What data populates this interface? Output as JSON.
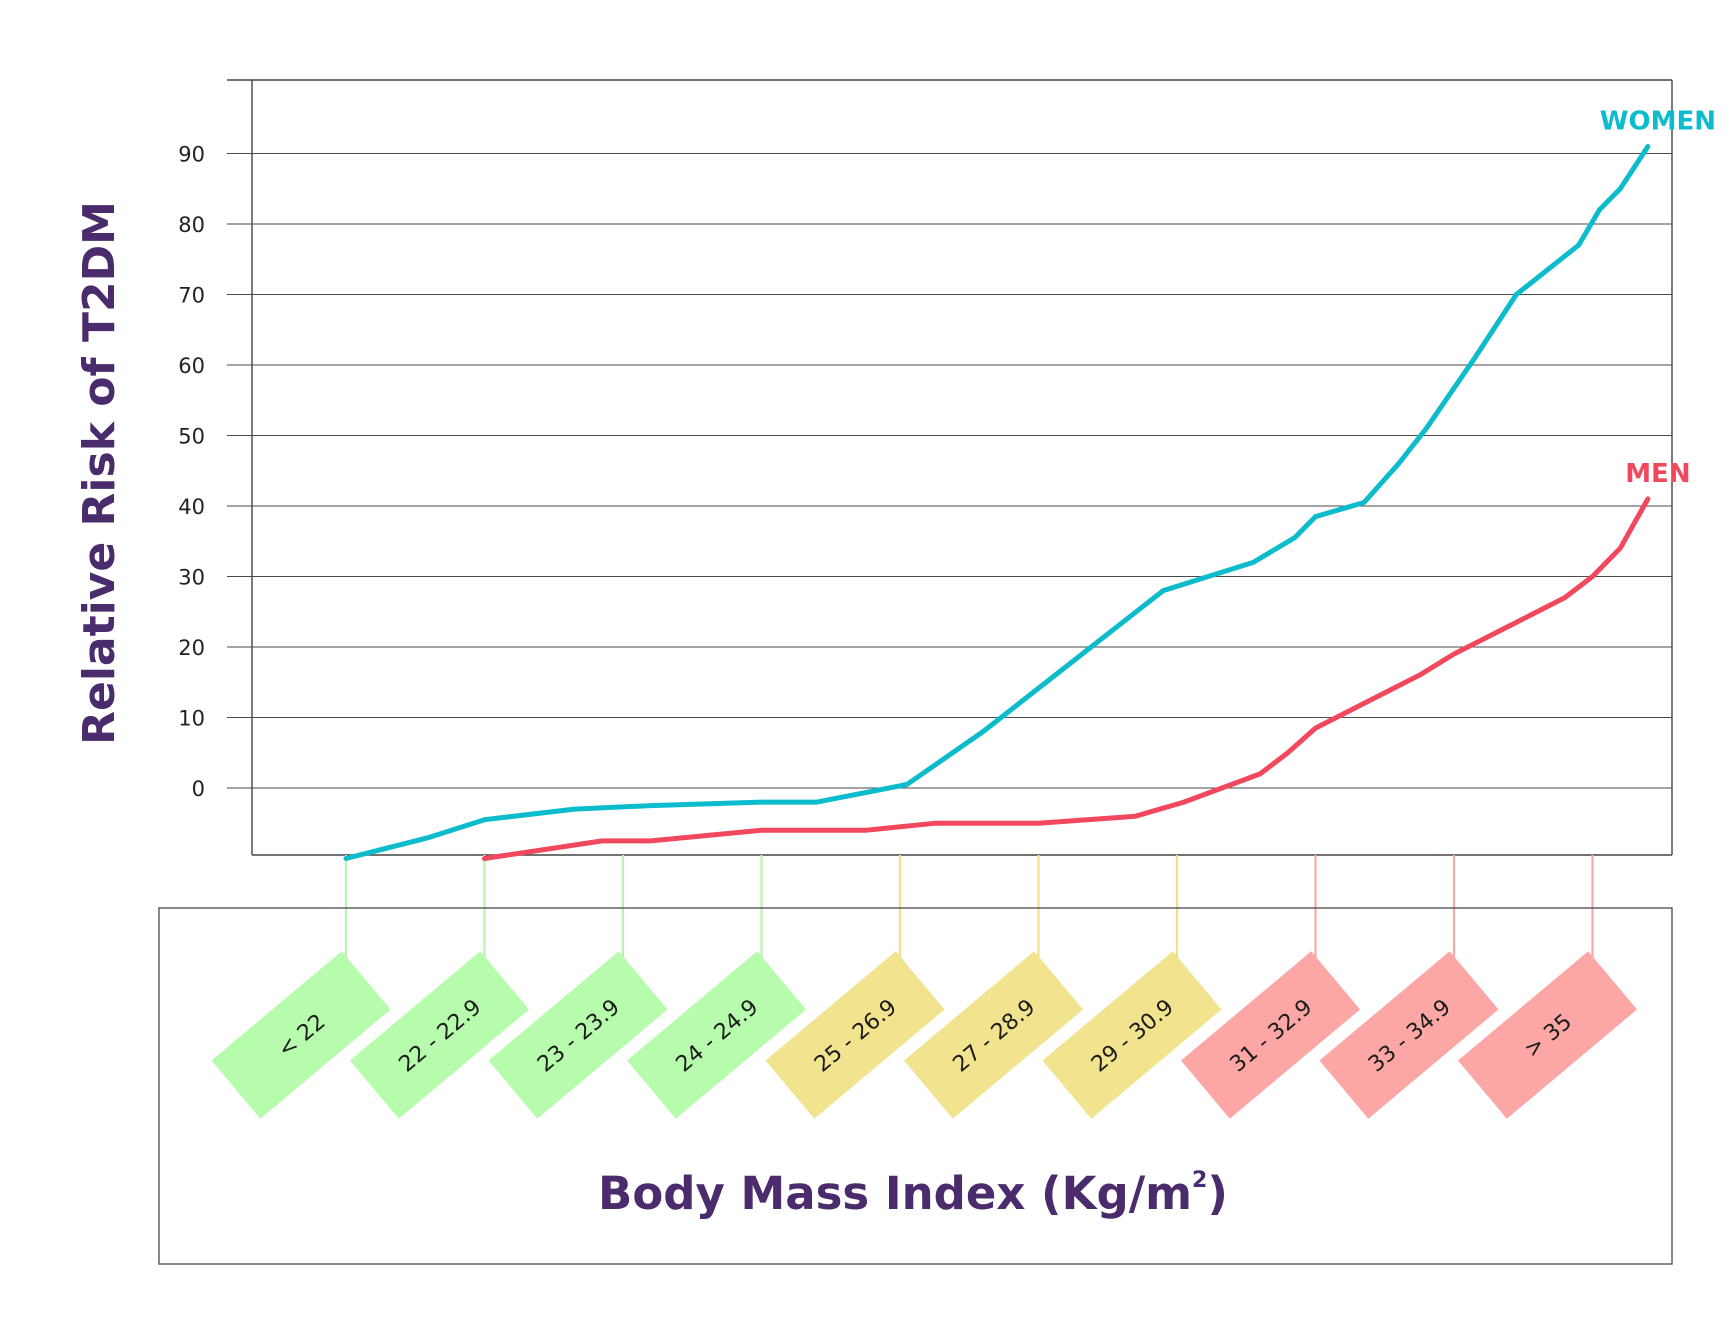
{
  "chart_data": {
    "type": "line",
    "ylabel": "Relative Risk of T2DM",
    "xlabel": {
      "main": "Body Mass Index (Kg/m",
      "sup": "2",
      "close": ")"
    },
    "yticks": [
      "0",
      "10",
      "20",
      "30",
      "40",
      "50",
      "60",
      "70",
      "80",
      "90"
    ],
    "ylim": [
      -10,
      100
    ],
    "categories": [
      "< 22",
      "22 - 22.9",
      "23 - 23.9",
      "24 - 24.9",
      "25 - 26.9",
      "27 - 28.9",
      "29 - 30.9",
      "31 - 32.9",
      "33 - 34.9",
      "> 35"
    ],
    "category_colors": [
      "#b6fcac",
      "#b6fcac",
      "#b6fcac",
      "#b6fcac",
      "#f2e38e",
      "#f2e38e",
      "#f2e38e",
      "#fca7a5",
      "#fca7a5",
      "#fca7a5"
    ],
    "connector_colors": [
      "#b9f5ae",
      "#b9f5ae",
      "#b9f5ae",
      "#b9f5ae",
      "#efe08a",
      "#efe08a",
      "#efe08a",
      "#f6a9a8",
      "#f6a9a8",
      "#f6a9a8"
    ],
    "series": [
      {
        "name": "WOMEN",
        "color": "#0cbccc",
        "x": [
          0,
          0.6,
          1.0,
          1.65,
          2.2,
          3.0,
          3.4,
          4.05,
          4.6,
          5.25,
          5.9,
          6.55,
          6.85,
          7.0,
          7.35,
          7.6,
          7.8,
          8.15,
          8.45,
          8.9,
          9.05,
          9.2,
          9.3,
          9.4
        ],
        "values": [
          -10,
          -7,
          -4.5,
          -3,
          -2.5,
          -2,
          -2,
          0.5,
          8,
          18,
          28,
          32,
          35.5,
          38.5,
          40.5,
          46,
          51,
          61,
          70,
          77,
          82,
          85,
          88,
          91
        ]
      },
      {
        "name": "MEN",
        "color": "#f2485e",
        "x": [
          1.0,
          1.85,
          2.2,
          3.0,
          3.75,
          4.25,
          5.0,
          5.7,
          6.05,
          6.6,
          6.8,
          7.0,
          7.35,
          7.75,
          8.0,
          8.3,
          8.8,
          9.0,
          9.2,
          9.4
        ],
        "values": [
          -10,
          -7.5,
          -7.5,
          -6,
          -6,
          -5,
          -5,
          -4,
          -2,
          2,
          5,
          8.5,
          12,
          16,
          19,
          22,
          27,
          30,
          34,
          41
        ]
      }
    ]
  }
}
